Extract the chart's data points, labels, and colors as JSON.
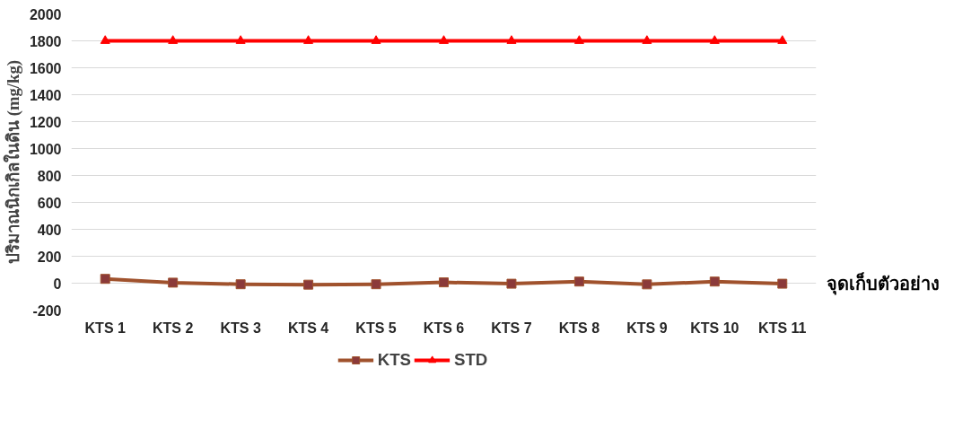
{
  "chart_data": {
    "type": "line",
    "xlabel": "จุดเก็บตัวอย่าง",
    "ylabel": "ปริมาณนิกเกิลในดิน (mg/kg)",
    "categories": [
      "KTS 1",
      "KTS 2",
      "KTS 3",
      "KTS 4",
      "KTS 5",
      "KTS 6",
      "KTS 7",
      "KTS 8",
      "KTS 9",
      "KTS 10",
      "KTS 11"
    ],
    "series": [
      {
        "name": "KTS",
        "color": "#a0522d",
        "marker": "square",
        "values": [
          32,
          4,
          -8,
          -11,
          -8,
          6,
          -4,
          12,
          -9,
          12,
          -4
        ]
      },
      {
        "name": "STD",
        "color": "#ff0000",
        "marker": "triangle",
        "values": [
          1800,
          1800,
          1800,
          1800,
          1800,
          1800,
          1800,
          1800,
          1800,
          1800,
          1800
        ]
      }
    ],
    "ylim": [
      -200,
      2000
    ],
    "yticks": [
      -200,
      0,
      200,
      400,
      600,
      800,
      1000,
      1200,
      1400,
      1600,
      1800,
      2000
    ],
    "grid": "y",
    "legend": "bottom"
  }
}
